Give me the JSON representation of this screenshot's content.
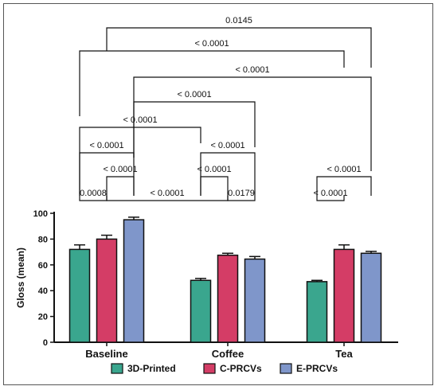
{
  "chart_data": {
    "type": "bar",
    "ylabel": "Gloss (mean)",
    "xlabel": "",
    "ylim": [
      0,
      100
    ],
    "yticks": [
      0,
      20,
      40,
      60,
      80,
      100
    ],
    "categories": [
      "Baseline",
      "Coffee",
      "Tea"
    ],
    "series": [
      {
        "name": "3D-Printed",
        "color": "#3aa68e",
        "values": [
          72,
          48,
          47
        ],
        "errors": [
          3.5,
          1.5,
          1.0
        ]
      },
      {
        "name": "C-PRCVs",
        "color": "#d43d66",
        "values": [
          80,
          67.5,
          72
        ],
        "errors": [
          3.0,
          1.5,
          3.5
        ]
      },
      {
        "name": "E-PRCVs",
        "color": "#7f96ca",
        "values": [
          95,
          64.5,
          69
        ],
        "errors": [
          2.0,
          2.0,
          1.5
        ]
      }
    ],
    "legend_position": "bottom",
    "comparisons": [
      {
        "from": [
          0,
          0
        ],
        "to": [
          0,
          1
        ],
        "p": "0.0008"
      },
      {
        "from": [
          0,
          1
        ],
        "to": [
          0,
          2
        ],
        "p": "< 0.0001"
      },
      {
        "from": [
          0,
          0
        ],
        "to": [
          0,
          2
        ],
        "p": "< 0.0001"
      },
      {
        "from": [
          0,
          1
        ],
        "to": [
          1,
          1
        ],
        "p": "< 0.0001"
      },
      {
        "from": [
          1,
          1
        ],
        "to": [
          1,
          2
        ],
        "p": "0.0179"
      },
      {
        "from": [
          1,
          0
        ],
        "to": [
          1,
          1
        ],
        "p": "< 0.0001"
      },
      {
        "from": [
          1,
          0
        ],
        "to": [
          1,
          2
        ],
        "p": "< 0.0001"
      },
      {
        "from": [
          0,
          0
        ],
        "to": [
          1,
          0
        ],
        "p": "< 0.0001"
      },
      {
        "from": [
          0,
          2
        ],
        "to": [
          1,
          2
        ],
        "p": "< 0.0001"
      },
      {
        "from": [
          0,
          2
        ],
        "to": [
          2,
          2
        ],
        "p": "< 0.0001"
      },
      {
        "from": [
          0,
          0
        ],
        "to": [
          2,
          1
        ],
        "p": "< 0.0001"
      },
      {
        "from": [
          0,
          1
        ],
        "to": [
          2,
          2
        ],
        "p": "0.0145"
      },
      {
        "from": [
          2,
          0
        ],
        "to": [
          2,
          1
        ],
        "p": "< 0.0001"
      },
      {
        "from": [
          2,
          0
        ],
        "to": [
          2,
          2
        ],
        "p": "< 0.0001"
      }
    ]
  }
}
